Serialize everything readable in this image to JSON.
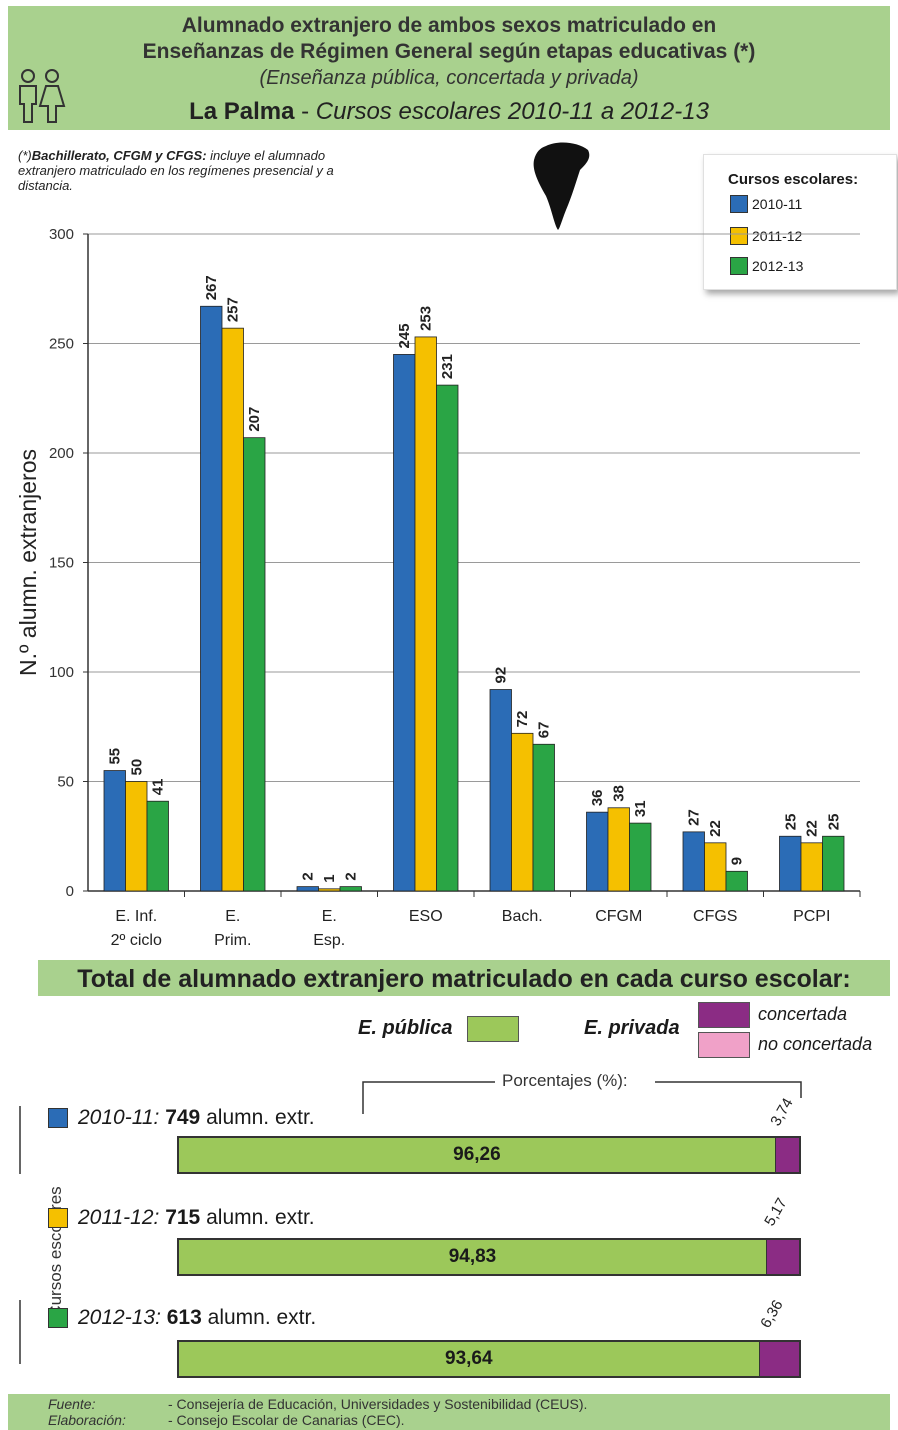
{
  "header": {
    "line1": "Alumnado extranjero de ambos sexos matriculado en",
    "line2": "Enseñanzas de Régimen General según etapas educativas (*)",
    "line3": "(Enseñanza pública, concertada y privada)",
    "place": "La Palma",
    "sep": " - ",
    "period": "Cursos escolares 2010-11 a 2012-13"
  },
  "note": {
    "marker": "(*)",
    "bold": "Bachillerato, CFGM y CFGS:",
    "text": " incluye el alumnado extranjero matriculado en los regímenes presencial y a distancia."
  },
  "legend": {
    "title": "Cursos escolares:",
    "items": [
      "2010-11",
      "2011-12",
      "2012-13"
    ]
  },
  "colors": {
    "blue": "#2b6cb6",
    "yellow": "#f5c000",
    "green": "#2aa545",
    "publica": "#9cc85a",
    "concertada": "#8b2c84",
    "no_concertada": "#f0a1c8",
    "header_band": "#a9d18e"
  },
  "chart_data": {
    "type": "bar",
    "ylabel": "N.º alumn. extranjeros",
    "ylim": [
      0,
      300
    ],
    "yticks": [
      0,
      50,
      100,
      150,
      200,
      250,
      300
    ],
    "categories": [
      [
        "E. Inf.",
        "2º ciclo"
      ],
      [
        "E.",
        "Prim."
      ],
      [
        "E.",
        "Esp."
      ],
      [
        "ESO"
      ],
      [
        "Bach."
      ],
      [
        "CFGM"
      ],
      [
        "CFGS"
      ],
      [
        "PCPI"
      ]
    ],
    "series": [
      {
        "name": "2010-11",
        "values": [
          55,
          267,
          2,
          245,
          92,
          36,
          27,
          25
        ]
      },
      {
        "name": "2011-12",
        "values": [
          50,
          257,
          1,
          253,
          72,
          38,
          22,
          22
        ]
      },
      {
        "name": "2012-13",
        "values": [
          41,
          207,
          2,
          231,
          67,
          31,
          9,
          25
        ]
      }
    ],
    "grid": true,
    "legend_position": "top-right"
  },
  "totals": {
    "title": "Total de alumnado extranjero matriculado en cada curso escolar:",
    "publica_label": "E. pública",
    "privada_label": "E. privada",
    "concertada": "concertada",
    "no_concertada": "no concertada",
    "porcentajes": "Porcentajes (%):",
    "side_label": "Cursos escolares",
    "unit": "alumn. extr.",
    "rows": [
      {
        "year": "2010-11:",
        "count": "749",
        "publica": 96.26,
        "publica_text": "96,26",
        "privada_text": "3,74"
      },
      {
        "year": "2011-12:",
        "count": "715",
        "publica": 94.83,
        "publica_text": "94,83",
        "privada_text": "5,17"
      },
      {
        "year": "2012-13:",
        "count": "613",
        "publica": 93.64,
        "publica_text": "93,64",
        "privada_text": "6,36"
      }
    ]
  },
  "footer": {
    "fuente_key": "Fuente:",
    "fuente_val": "- Consejería de Educación, Universidades y Sostenibilidad (CEUS).",
    "elab_key": "Elaboración:",
    "elab_val": "- Consejo Escolar de Canarias (CEC)."
  }
}
